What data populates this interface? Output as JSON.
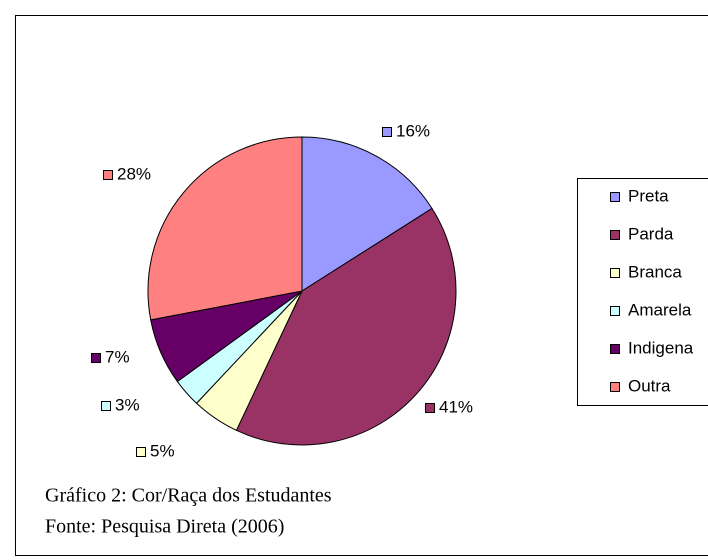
{
  "chart_data": {
    "type": "pie",
    "categories": [
      "Preta",
      "Parda",
      "Branca",
      "Amarela",
      "Indigena",
      "Outra"
    ],
    "values": [
      16,
      41,
      5,
      3,
      7,
      28
    ],
    "value_labels": [
      "16%",
      "41%",
      "5%",
      "3%",
      "7%",
      "28%"
    ],
    "colors": [
      "#9999ff",
      "#993366",
      "#ffffcc",
      "#ccffff",
      "#660066",
      "#ff8080"
    ],
    "legend": "right",
    "captions": [
      "Gráfico 2: Cor/Raça dos Estudantes",
      "Fonte: Pesquisa Direta (2006)"
    ]
  }
}
